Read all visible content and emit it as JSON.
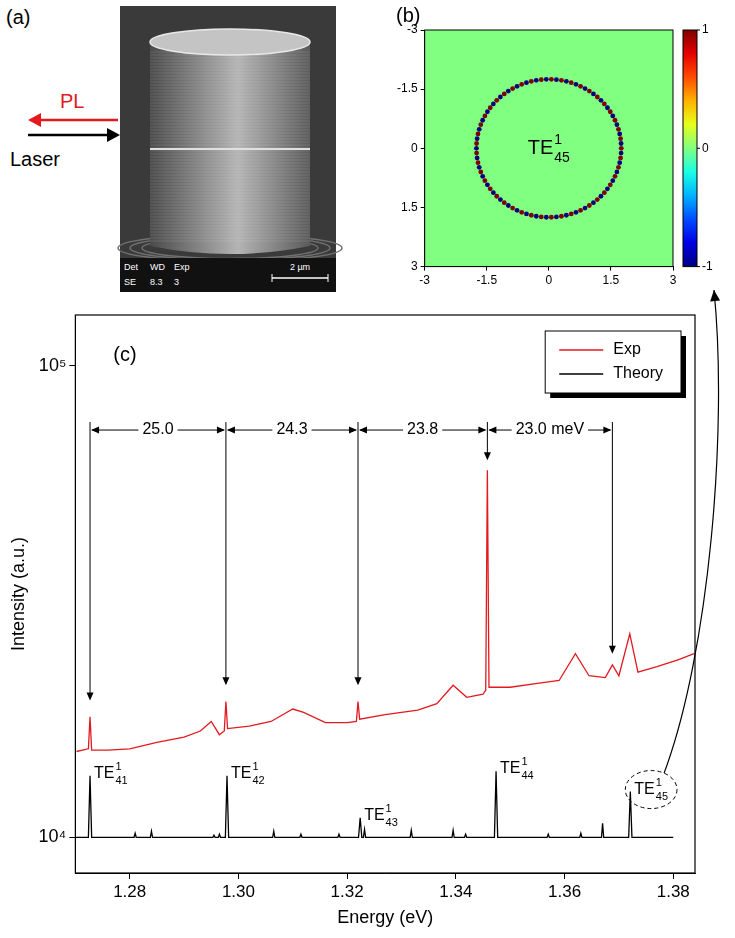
{
  "sem_image": {
    "letter": "(a)",
    "pl": "PL",
    "laser": "Laser",
    "footer_row1": [
      "Det",
      "WD",
      "Exp"
    ],
    "footer_row2": [
      "SE",
      "8.3",
      "3"
    ],
    "scale_bar": "2 µm"
  },
  "chart_data": [
    {
      "type": "heatmap",
      "panel": "(b)",
      "mode_label": {
        "base": "TE",
        "sup": "1",
        "sub": "45"
      },
      "ring": {
        "radius": 1.75,
        "lobes": 90,
        "amplitude": 1
      },
      "xlim": [
        -3,
        3
      ],
      "ylim": [
        -3,
        3
      ],
      "xticks": [
        -3,
        -1.5,
        0,
        1.5,
        3
      ],
      "yticks": [
        -3,
        -1.5,
        0,
        1.5,
        3
      ],
      "colorbar": {
        "range": [
          -1,
          1
        ],
        "ticks": [
          1,
          0,
          -1
        ]
      },
      "grid": false
    },
    {
      "type": "line",
      "panel": "(c)",
      "x_label": "Energy (eV)",
      "y_label": "Intensity (a.u.)",
      "log": "y",
      "grid": false,
      "legend": "top right",
      "xlim": [
        1.27,
        1.384
      ],
      "xticks": [
        1.28,
        {
          "value": 1.3,
          "label": "1.30"
        },
        1.32,
        1.34,
        1.36,
        1.38
      ],
      "ylim": [
        8400,
        128000
      ],
      "yticks": [
        {
          "value": 10000,
          "label": "10⁴"
        },
        {
          "value": 100000,
          "label": "10⁵"
        }
      ],
      "series": [
        {
          "name": "Exp",
          "color": "#e3191e",
          "x": [
            1.2702,
            1.2724,
            1.2727,
            1.273,
            1.276,
            1.28,
            1.285,
            1.29,
            1.293,
            1.295,
            1.2965,
            1.2974,
            1.2977,
            1.298,
            1.302,
            1.306,
            1.31,
            1.312,
            1.316,
            1.32,
            1.3217,
            1.322,
            1.3223,
            1.327,
            1.333,
            1.3365,
            1.3395,
            1.342,
            1.345,
            1.3455,
            1.3458,
            1.3461,
            1.35,
            1.355,
            1.359,
            1.362,
            1.3645,
            1.3675,
            1.3688,
            1.37,
            1.372,
            1.3735,
            1.377,
            1.381,
            1.3838
          ],
          "values": [
            15200,
            15400,
            18000,
            15300,
            15300,
            15400,
            15900,
            16300,
            16800,
            17600,
            16500,
            16800,
            19400,
            17000,
            17200,
            17600,
            18700,
            18400,
            17500,
            17500,
            17600,
            19400,
            17800,
            18200,
            18600,
            19200,
            21000,
            19800,
            20100,
            20500,
            60000,
            20800,
            20800,
            21200,
            21500,
            24500,
            22000,
            21800,
            23200,
            22000,
            27000,
            22400,
            23000,
            23800,
            24500
          ]
        },
        {
          "name": "Theory",
          "color": "#000000",
          "x": [
            1.27,
            1.2724,
            1.2727,
            1.273,
            1.2808,
            1.281,
            1.2812,
            1.2838,
            1.284,
            1.2842,
            1.2953,
            1.2955,
            1.2957,
            1.2963,
            1.2965,
            1.2967,
            1.2976,
            1.2979,
            1.2982,
            1.3063,
            1.3065,
            1.3067,
            1.3113,
            1.3115,
            1.3117,
            1.3183,
            1.3185,
            1.3187,
            1.3221,
            1.3224,
            1.3227,
            1.323,
            1.3232,
            1.3234,
            1.3316,
            1.3318,
            1.332,
            1.3393,
            1.3395,
            1.3397,
            1.3416,
            1.3418,
            1.342,
            1.3471,
            1.3474,
            1.3477,
            1.3568,
            1.357,
            1.3572,
            1.3628,
            1.363,
            1.3632,
            1.3668,
            1.367,
            1.3672,
            1.3718,
            1.3721,
            1.3724,
            1.38
          ],
          "values": [
            10000,
            10000,
            13500,
            10000,
            10000,
            10200,
            10000,
            10000,
            10300,
            10000,
            10000,
            10100,
            10000,
            10000,
            10150,
            10000,
            10000,
            13500,
            10000,
            10000,
            10300,
            10000,
            10000,
            10150,
            10000,
            10000,
            10150,
            10000,
            10000,
            11000,
            10000,
            10000,
            10400,
            10000,
            10000,
            10350,
            10000,
            10000,
            10350,
            10000,
            10000,
            10150,
            10000,
            10000,
            13800,
            10000,
            10000,
            10150,
            10000,
            10000,
            10200,
            10000,
            10000,
            10700,
            10000,
            10000,
            12500,
            10000,
            10000
          ],
          "point_labels": [
            null,
            null,
            {
              "base": "TE",
              "sup": "1",
              "sub": "41"
            },
            null,
            null,
            null,
            null,
            null,
            null,
            null,
            null,
            null,
            null,
            null,
            null,
            null,
            null,
            {
              "base": "TE",
              "sup": "1",
              "sub": "42"
            },
            null,
            null,
            null,
            null,
            null,
            null,
            null,
            null,
            null,
            null,
            null,
            {
              "base": "TE",
              "sup": "1",
              "sub": "43"
            },
            null,
            null,
            null,
            null,
            null,
            null,
            null,
            null,
            null,
            null,
            null,
            null,
            null,
            null,
            {
              "base": "TE",
              "sup": "1",
              "sub": "44"
            },
            null,
            null,
            null,
            null,
            null,
            null,
            null,
            null,
            null,
            null,
            null,
            {
              "base": "TE",
              "sup": "1",
              "sub": "45"
            },
            null,
            null
          ]
        }
      ],
      "spacing": {
        "energies": [
          1.2727,
          1.2977,
          1.322,
          1.3458,
          1.3688
        ],
        "arrow_tips": [
          19500,
          21000,
          21000,
          63000,
          24500
        ],
        "level": 73000,
        "labels": [
          "25.0",
          "24.3",
          "23.8",
          "23.0 meV"
        ]
      }
    }
  ]
}
